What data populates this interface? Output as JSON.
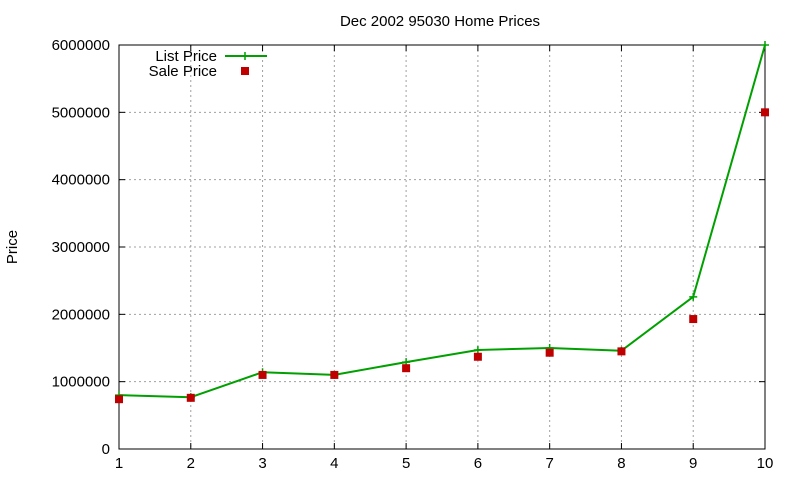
{
  "chart_data": {
    "type": "line",
    "title": "Dec 2002 95030 Home Prices",
    "xlabel": "",
    "ylabel": "Price",
    "x": [
      1,
      2,
      3,
      4,
      5,
      6,
      7,
      8,
      9,
      10
    ],
    "xlim": [
      1,
      10
    ],
    "ylim": [
      0,
      6000000
    ],
    "xticks": [
      "1",
      "2",
      "3",
      "4",
      "5",
      "6",
      "7",
      "8",
      "9",
      "10"
    ],
    "yticks": [
      "0",
      "1000000",
      "2000000",
      "3000000",
      "4000000",
      "5000000",
      "6000000"
    ],
    "ytick_values": [
      0,
      1000000,
      2000000,
      3000000,
      4000000,
      5000000,
      6000000
    ],
    "grid": true,
    "legend_position": "top-left",
    "series": [
      {
        "name": "List Price",
        "style": "line-with-plus-markers",
        "color": "#00a000",
        "values": [
          800000,
          770000,
          1140000,
          1100000,
          1290000,
          1470000,
          1500000,
          1460000,
          2260000,
          6000000
        ]
      },
      {
        "name": "Sale Price",
        "style": "square-markers",
        "color": "#c00000",
        "values": [
          740000,
          760000,
          1100000,
          1100000,
          1200000,
          1370000,
          1430000,
          1450000,
          1930000,
          5000000
        ]
      }
    ]
  }
}
